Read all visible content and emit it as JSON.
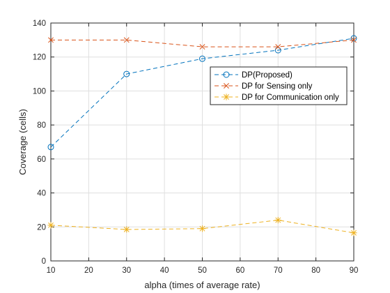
{
  "chart_data": {
    "type": "line",
    "title": "",
    "xlabel": "alpha (times of average rate)",
    "ylabel": "Coverage (cells)",
    "xlim": [
      10,
      90
    ],
    "ylim": [
      0,
      140
    ],
    "xticks": [
      10,
      20,
      30,
      40,
      50,
      60,
      70,
      80,
      90
    ],
    "yticks": [
      0,
      20,
      40,
      60,
      80,
      100,
      120,
      140
    ],
    "grid": true,
    "legend_position": "upper-right",
    "x": [
      10,
      30,
      50,
      70,
      90
    ],
    "series": [
      {
        "name": "DP(Proposed)",
        "values": [
          67,
          110,
          119,
          124,
          131
        ],
        "color": "#0072BD",
        "marker": "circle",
        "line_style": "dashed"
      },
      {
        "name": "DP for Sensing only",
        "values": [
          130,
          130,
          126,
          126,
          130
        ],
        "color": "#D95319",
        "marker": "x",
        "line_style": "dashed"
      },
      {
        "name": "DP for Communication only",
        "values": [
          21,
          18.5,
          19,
          24,
          16.5
        ],
        "color": "#EDB120",
        "marker": "asterisk",
        "line_style": "dashed"
      }
    ]
  }
}
